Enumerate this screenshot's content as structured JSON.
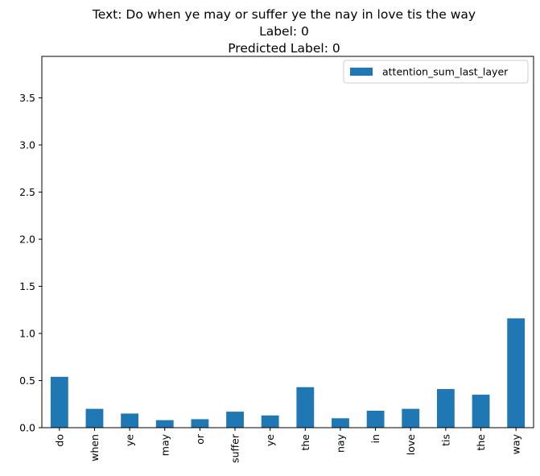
{
  "chart_data": {
    "type": "bar",
    "title_lines": [
      "Text: Do when ye may or suffer ye the nay in love tis the way",
      "Label: 0",
      "Predicted Label: 0"
    ],
    "xlabel": "",
    "ylabel": "",
    "categories": [
      "do",
      "when",
      "ye",
      "may",
      "or",
      "suffer",
      "ye",
      "the",
      "nay",
      "in",
      "love",
      "tis",
      "the",
      "way"
    ],
    "series": [
      {
        "name": "attention_sum_last_layer",
        "color": "#1f77b4",
        "values": [
          0.54,
          0.2,
          0.15,
          0.08,
          0.09,
          0.17,
          0.13,
          0.43,
          0.1,
          0.18,
          0.2,
          0.41,
          0.35,
          1.16
        ]
      }
    ],
    "ylim": [
      0,
      3.94
    ],
    "yticks": [
      0.0,
      0.5,
      1.0,
      1.5,
      2.0,
      2.5,
      3.0,
      3.5
    ],
    "ytick_labels": [
      "0.0",
      "0.5",
      "1.0",
      "1.5",
      "2.0",
      "2.5",
      "3.0",
      "3.5"
    ],
    "grid": false,
    "legend_position": "top-right"
  }
}
